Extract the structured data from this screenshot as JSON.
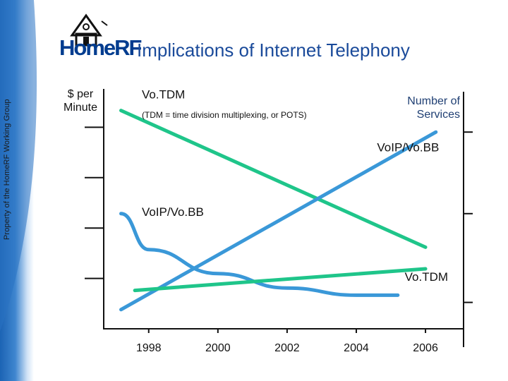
{
  "side_label": "Property of the HomeRF Working Group",
  "logo": {
    "text": "HomeRF"
  },
  "title": "Implications of Internet Telephony",
  "colors": {
    "green": "#1fc58a",
    "blue": "#3a98d8",
    "axis": "#111111"
  },
  "chart_data": {
    "type": "line",
    "x": [
      1998,
      2000,
      2002,
      2004,
      2006
    ],
    "xticks": [
      "1998",
      "2000",
      "2002",
      "2004",
      "2006"
    ],
    "left_axis_label": "$ per Minute",
    "right_axis_label": "Number of Services",
    "series": [
      {
        "name": "Vo.TDM",
        "axis": "cost",
        "color": "green",
        "style": "straight",
        "points": [
          [
            1997.2,
            0.91
          ],
          [
            2006,
            0.34
          ]
        ]
      },
      {
        "name": "VoIP/Vo.BB",
        "axis": "services",
        "color": "blue",
        "style": "straight",
        "points": [
          [
            1997.2,
            0.08
          ],
          [
            2006.3,
            0.82
          ]
        ]
      },
      {
        "name": "VoIP/Vo.BB",
        "axis": "cost",
        "color": "blue",
        "style": "curve",
        "points": [
          [
            1997.2,
            0.48
          ],
          [
            1998,
            0.33
          ],
          [
            2000,
            0.23
          ],
          [
            2002,
            0.17
          ],
          [
            2004,
            0.14
          ],
          [
            2005.2,
            0.14
          ]
        ]
      },
      {
        "name": "Vo.TDM",
        "axis": "services",
        "color": "green",
        "style": "straight",
        "points": [
          [
            1997.6,
            0.16
          ],
          [
            2006,
            0.25
          ]
        ]
      }
    ],
    "annotations": [
      {
        "text": "Vo.TDM",
        "x": 1997.8,
        "y": 0.96,
        "size": 17
      },
      {
        "text": "(TDM = time division multiplexing, or POTS)",
        "x": 1997.8,
        "y": 0.88,
        "size": 12
      },
      {
        "text": "VoIP/Vo.BB",
        "x": 2004.6,
        "y": 0.74,
        "size": 17
      },
      {
        "text": "VoIP/Vo.BB",
        "x": 1997.8,
        "y": 0.47,
        "size": 17
      },
      {
        "text": "Vo.TDM",
        "x": 2005.4,
        "y": 0.2,
        "size": 17
      }
    ]
  }
}
